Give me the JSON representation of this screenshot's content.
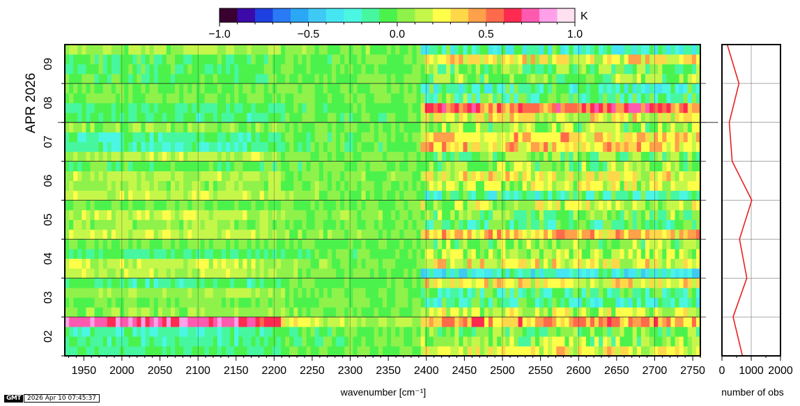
{
  "chart_data": [
    {
      "type": "heatmap",
      "title": "",
      "xlabel": "wavenumber [cm⁻¹]",
      "ylabel": "APR 2026",
      "x_range": [
        1925,
        2760
      ],
      "x_ticks": [
        "1950",
        "2000",
        "2050",
        "2100",
        "2150",
        "2200",
        "2250",
        "2300",
        "2350",
        "2400",
        "2450",
        "2500",
        "2550",
        "2600",
        "2650",
        "2700",
        "2750"
      ],
      "y_days": [
        "02",
        "03",
        "04",
        "05",
        "06",
        "07",
        "08",
        "09"
      ],
      "y_range": [
        1.5,
        9.5
      ],
      "color_scale": {
        "unit": "K",
        "range": [
          -1.0,
          1.0
        ],
        "tick_labels": [
          "−1.0",
          "−0.5",
          "0.0",
          "0.5",
          "1.0"
        ],
        "colors": [
          "#3a0030",
          "#3b0aa8",
          "#1e40e0",
          "#2a7af5",
          "#2aa8f5",
          "#3fcaf5",
          "#45e6f2",
          "#4bf7e3",
          "#46f7a0",
          "#4cf24c",
          "#8ef24a",
          "#c4f74a",
          "#ffff4a",
          "#ffd84a",
          "#ffa04a",
          "#ff6a4a",
          "#ff2a50",
          "#ff5ab0",
          "#ffa0e8",
          "#ffe0f0"
        ]
      }
    },
    {
      "type": "line",
      "xlabel": "number of obs",
      "x_ticks": [
        "0",
        "1000",
        "2000"
      ],
      "xlim": [
        0,
        2000
      ],
      "series": [
        {
          "color": "#e8201c",
          "x": [
            700,
            380,
            850,
            600,
            1020,
            350,
            250,
            580,
            180
          ],
          "y": [
            1.5,
            2.5,
            3.5,
            4.5,
            5.5,
            6.5,
            7.5,
            8.5,
            9.5
          ]
        }
      ]
    }
  ],
  "footer": {
    "logo": "GMT",
    "timestamp": "2026 Apr 10 07:45:37"
  }
}
